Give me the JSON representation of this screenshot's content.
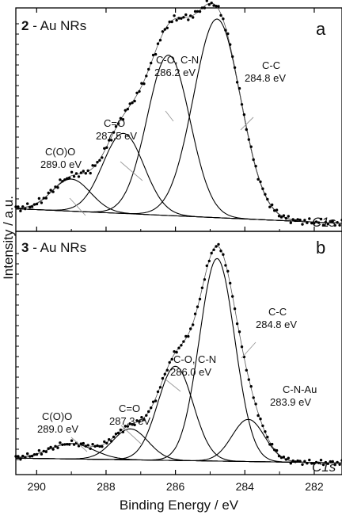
{
  "chart_data": [
    {
      "type": "line",
      "panel_number": "2",
      "panel_title": " - Au NRs",
      "panel_tag": "a",
      "core_level": "C1s",
      "xlim": [
        290.6,
        281.2
      ],
      "peaks": [
        {
          "label_line1": "C(O)O",
          "label_line2": "289.0 eV",
          "center": 289.0,
          "height": 0.088,
          "fwhm": 1.3
        },
        {
          "label_line1": "C=O",
          "label_line2": "287.5 eV",
          "center": 287.5,
          "height": 0.22,
          "fwhm": 1.4
        },
        {
          "label_line1": "C-O, C-N",
          "label_line2": "286.2 eV",
          "center": 286.2,
          "height": 0.44,
          "fwhm": 1.45
        },
        {
          "label_line1": "C-C",
          "label_line2": "284.8 eV",
          "center": 284.8,
          "height": 0.545,
          "fwhm": 1.6
        }
      ],
      "baseline": {
        "x_start": 290.6,
        "y_start": 0.01,
        "x_end": 281.2,
        "y_end": -0.03
      }
    },
    {
      "type": "line",
      "panel_number": "3",
      "panel_title": " - Au NRs",
      "panel_tag": "b",
      "core_level": "C1s",
      "xlim": [
        290.6,
        281.2
      ],
      "peaks": [
        {
          "label_line1": "C(O)O",
          "label_line2": "289.0 eV",
          "center": 289.0,
          "height": 0.055,
          "fwhm": 1.5
        },
        {
          "label_line1": "C=O",
          "label_line2": "287.3 eV",
          "center": 287.3,
          "height": 0.11,
          "fwhm": 1.2
        },
        {
          "label_line1": "C-O, C-N",
          "label_line2": "286.0 eV",
          "center": 286.0,
          "height": 0.335,
          "fwhm": 1.2
        },
        {
          "label_line1": "C-C",
          "label_line2": "284.8 eV",
          "center": 284.8,
          "height": 0.72,
          "fwhm": 1.2
        },
        {
          "label_line1": "C-N-Au",
          "label_line2": "283.9 eV",
          "center": 283.9,
          "height": 0.15,
          "fwhm": 1.1
        }
      ],
      "baseline": {
        "x_start": 290.6,
        "y_start": 0.005,
        "x_end": 281.2,
        "y_end": -0.012
      }
    }
  ],
  "axes": {
    "xlabel": "Binding Energy / eV",
    "ylabel": "Intensity / a.u.",
    "xticks": [
      "290",
      "288",
      "286",
      "284",
      "282"
    ]
  }
}
